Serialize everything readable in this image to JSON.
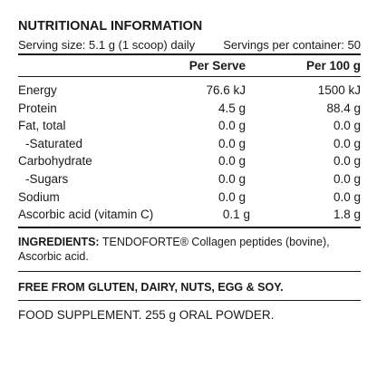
{
  "panel": {
    "title": "NUTRITIONAL INFORMATION",
    "serving_size": "Serving size: 5.1 g (1 scoop) daily",
    "servings_per_container": "Servings per container: 50",
    "columns": {
      "per_serve": "Per Serve",
      "per_100g": "Per 100 g"
    },
    "rows": [
      {
        "name": "Energy",
        "per_serve": "76.6 kJ",
        "per_100g": "1500 kJ"
      },
      {
        "name": "Protein",
        "per_serve": "4.5 g",
        "per_100g": "88.4 g"
      },
      {
        "name": "Fat, total",
        "per_serve": "0.0 g",
        "per_100g": "0.0 g"
      },
      {
        "name": "-Saturated",
        "per_serve": "0.0 g",
        "per_100g": "0.0 g"
      },
      {
        "name": "Carbohydrate",
        "per_serve": "0.0 g",
        "per_100g": "0.0 g"
      },
      {
        "name": "-Sugars",
        "per_serve": "0.0 g",
        "per_100g": "0.0 g"
      },
      {
        "name": "Sodium",
        "per_serve": "0.0 g",
        "per_100g": "0.0 g"
      },
      {
        "name": "Ascorbic acid (vitamin C)",
        "per_serve": "0.1 g",
        "per_100g": "1.8 g"
      }
    ]
  },
  "ingredients": {
    "label": "INGREDIENTS:",
    "text": " TENDOFORTE® Collagen peptides (bovine), Ascorbic acid."
  },
  "free_from": "FREE FROM GLUTEN, DAIRY, NUTS, EGG & SOY.",
  "supplement": "FOOD SUPPLEMENT. 255 g ORAL POWDER."
}
